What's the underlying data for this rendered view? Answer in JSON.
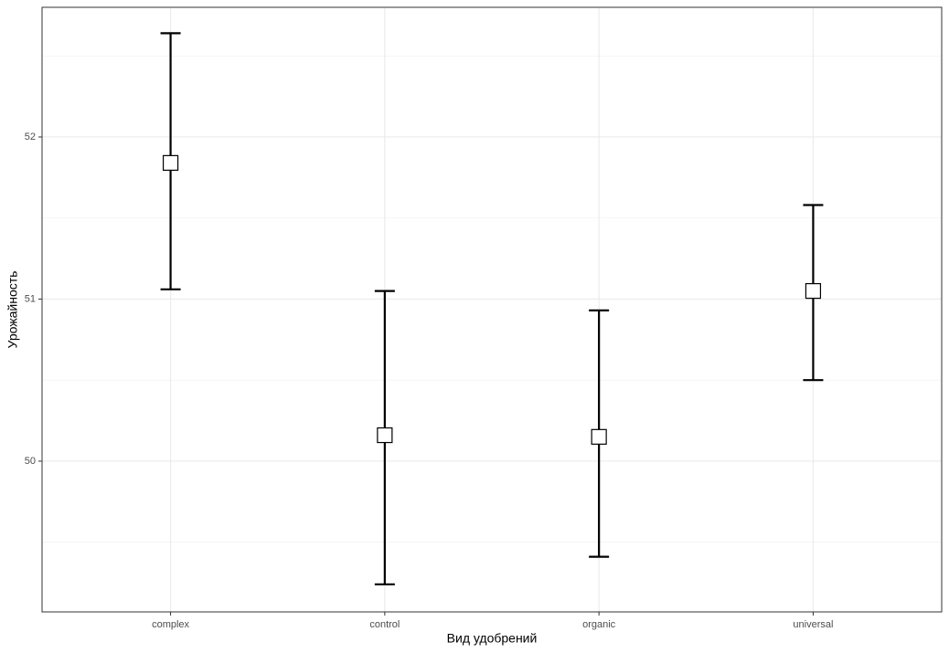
{
  "chart_data": {
    "type": "errorbar",
    "x_label": "Вид удобрений",
    "y_label": "Урожайность",
    "categories": [
      "complex",
      "control",
      "organic",
      "universal"
    ],
    "values": [
      51.84,
      50.16,
      50.15,
      51.05
    ],
    "lower": [
      51.06,
      49.24,
      49.41,
      50.5
    ],
    "upper": [
      52.64,
      51.05,
      50.93,
      51.58
    ],
    "color": "#000000",
    "marker_fill": "#ffffff",
    "ylim": [
      49.07,
      52.8
    ],
    "yticks": [
      50,
      51,
      52
    ],
    "minor_yticks": [
      49.5,
      50.5,
      51.5,
      52.5
    ],
    "grid": true
  }
}
